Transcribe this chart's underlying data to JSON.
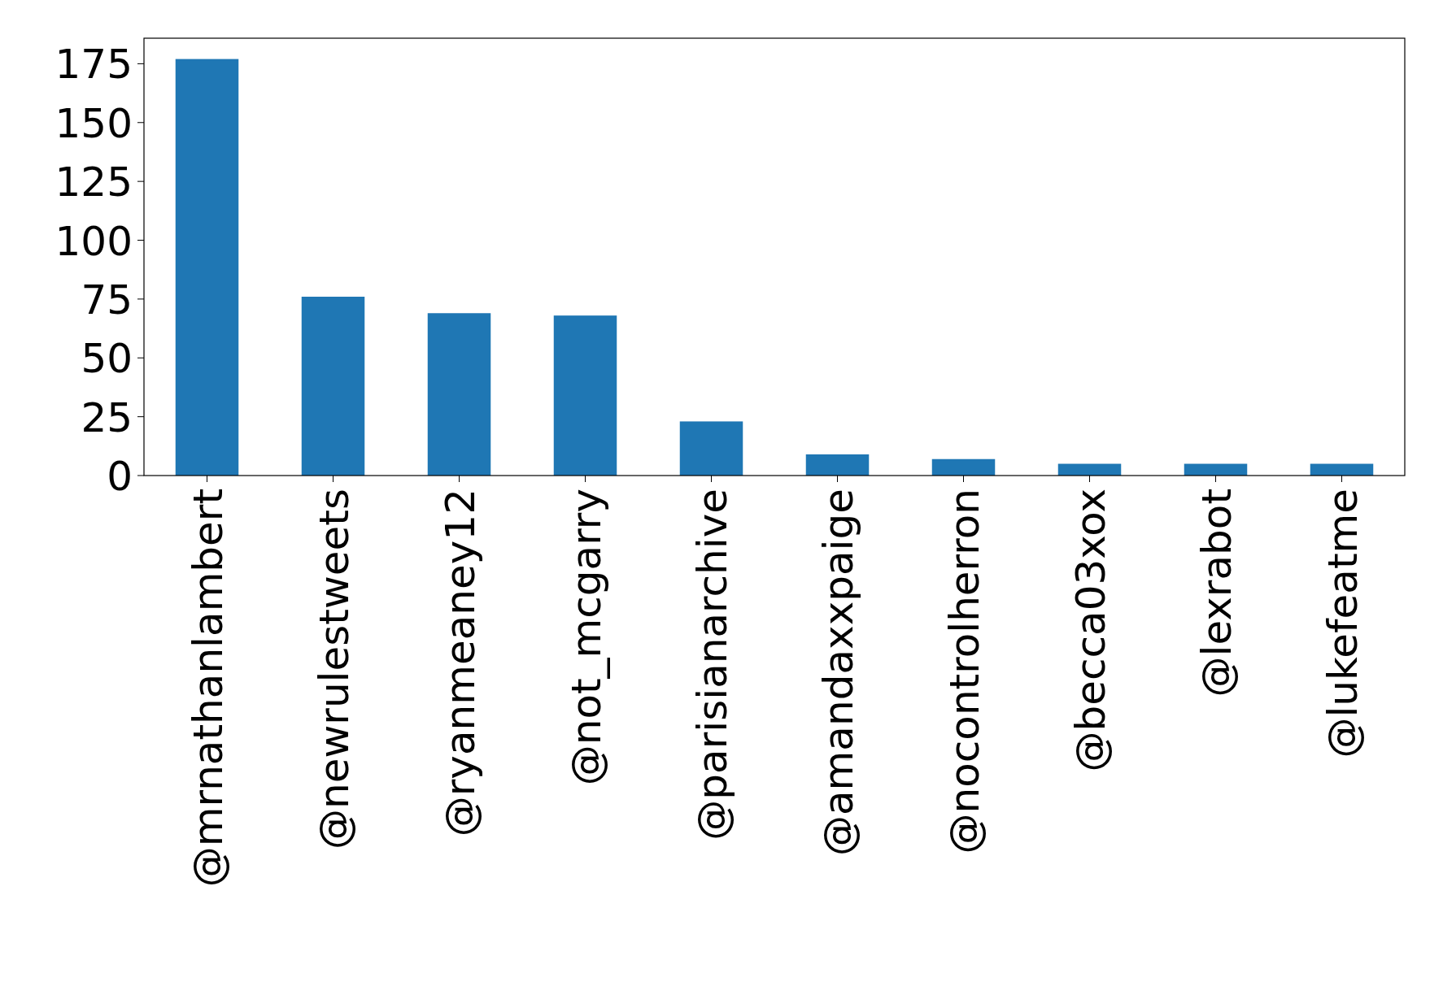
{
  "chart_data": {
    "type": "bar",
    "categories": [
      "@mrnathanlambert",
      "@newrulestweets",
      "@ryanmeaney12",
      "@not_mcgarry",
      "@parisianarchive",
      "@amandaxxpaige",
      "@nocontrolherron",
      "@becca03xox",
      "@lexrabot",
      "@lukefeatme"
    ],
    "values": [
      177,
      76,
      69,
      68,
      23,
      9,
      7,
      5,
      5,
      5
    ],
    "color": "#1f77b4",
    "ylim": [
      0,
      185.85
    ],
    "yticks": [
      0,
      25,
      50,
      75,
      100,
      125,
      150,
      175
    ],
    "grid": false
  }
}
